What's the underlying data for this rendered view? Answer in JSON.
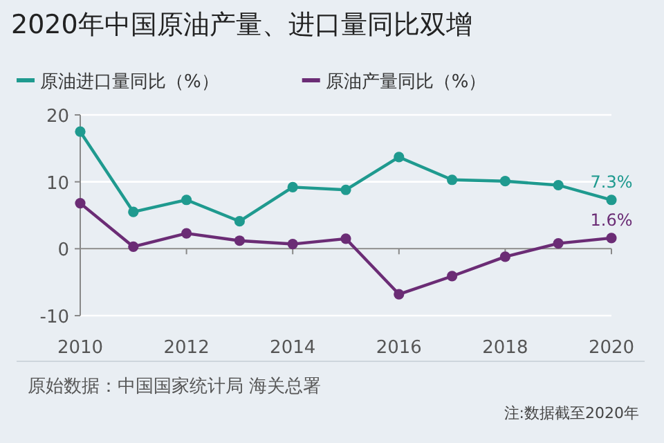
{
  "chart_data": {
    "type": "line",
    "title": "2020年中国原油产量、进口量同比双增",
    "x": [
      2010,
      2011,
      2012,
      2013,
      2014,
      2015,
      2016,
      2017,
      2018,
      2019,
      2020
    ],
    "series": [
      {
        "name": "原油进口量同比（%）",
        "color": "#1f9a8f",
        "values": [
          17.5,
          5.5,
          7.3,
          4.1,
          9.2,
          8.8,
          13.7,
          10.3,
          10.1,
          9.5,
          7.3
        ],
        "value_labels": [
          null,
          null,
          null,
          null,
          null,
          null,
          null,
          null,
          null,
          null,
          "7.3%"
        ]
      },
      {
        "name": "原油产量同比（%）",
        "color": "#6b2c75",
        "values": [
          6.8,
          0.3,
          2.3,
          1.2,
          0.7,
          1.5,
          -6.8,
          -4.1,
          -1.2,
          0.8,
          1.6
        ],
        "value_labels": [
          null,
          null,
          null,
          null,
          null,
          null,
          null,
          null,
          null,
          null,
          "1.6%"
        ]
      }
    ],
    "xlim": [
      2010,
      2020
    ],
    "xticks": [
      2010,
      2012,
      2014,
      2016,
      2018,
      2020
    ],
    "ylim": [
      -10,
      20
    ],
    "yticks": [
      -10,
      0,
      10,
      20
    ],
    "grid": "y",
    "legend": "top",
    "marker": "circle",
    "line_style": "solid",
    "annotations": [
      "原始数据：中国国家统计局 海关总署",
      "注:数据截至2020年"
    ]
  }
}
